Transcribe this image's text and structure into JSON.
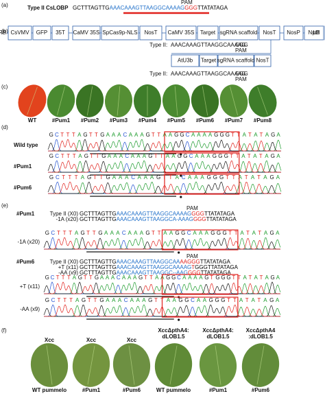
{
  "panel_a": {
    "label": "(a)",
    "pam": "PAM",
    "name": "Type II CsLOBP",
    "seq": [
      {
        "text": "GCTTTAGTTG",
        "color": "#000000"
      },
      {
        "text": "AAACAAAGTTAAGGCAAAAG",
        "color": "#1f6fc9"
      },
      {
        "text": "GGG",
        "color": "#e0201b"
      },
      {
        "text": "TTATATAGA",
        "color": "#000000"
      }
    ]
  },
  "panel_b": {
    "label": "(b)",
    "construct": [
      "RB",
      "CsVMV",
      "GFP",
      "35T",
      "CaMV 35S",
      "SpCas9p-NLS",
      "NosT",
      "CaMV 35S",
      "Target",
      "sgRNA scaffold",
      "NosT",
      "NosP",
      "NptII",
      "35T",
      "LB"
    ],
    "target1": {
      "name": "Type II:",
      "seq": "AAACAAAGTTAAGGCAAAAG",
      "pam_seq": "GGG",
      "pam": "PAM"
    },
    "cassette2": [
      "AtU3b",
      "Target",
      "sgRNA scaffold",
      "NosT"
    ],
    "target2": {
      "name": "Type II:",
      "seq": "AAACAAAGTTAAGGCAAAAG",
      "pam_seq": "GGG",
      "pam": "PAM"
    }
  },
  "panel_c": {
    "label": "(c)",
    "plants": [
      "WT",
      "#Pum1",
      "#Pum2",
      "#Pum3",
      "#Pum4",
      "#Pum5",
      "#Pum6",
      "#Pum7",
      "#Pum8"
    ]
  },
  "panel_d": {
    "label": "(d)",
    "traces": [
      {
        "name": "Wild type",
        "bases": "GCTTTAGTTGAAACAAAGTTAAGGCAAAAGGGTTATATAGA"
      },
      {
        "name": "#Pum1",
        "bases": "GCTTTAGTTGAAACAAAGTTAAGGCAAAGGGTTATATAGA"
      },
      {
        "name": "#Pum6",
        "bases": "GCTTTAGTTGAAACAAAGTTACAAAGGGTTATATAGA"
      }
    ]
  },
  "panel_e": {
    "label": "(e)",
    "groups": [
      {
        "line": "#Pum1",
        "pam": "PAM",
        "alleles": [
          {
            "name": "Type II (X0)",
            "seq": [
              {
                "text": "GCTTTAGTTG",
                "color": "#000000"
              },
              {
                "text": "AAACAAAGTTAAGGCAAAAG",
                "color": "#1f6fc9"
              },
              {
                "text": "GGG",
                "color": "#e0201b"
              },
              {
                "text": "TTATATAGA",
                "color": "#000000"
              }
            ]
          },
          {
            "name": "-1A (x20)",
            "seq": [
              {
                "text": "GCTTTAGTTG",
                "color": "#000000"
              },
              {
                "text": "AAACAAAGTTAAGGCA-AAAG",
                "color": "#1f6fc9"
              },
              {
                "text": "GGG",
                "color": "#e0201b"
              },
              {
                "text": "TTATATAGA",
                "color": "#000000"
              }
            ]
          }
        ],
        "traces": [
          {
            "name": "-1A (x20)",
            "bases": "GCTTTAGTTGAAACAAAGTTAAGGCAAAGGGTTATATAGA"
          }
        ]
      },
      {
        "line": "#Pum6",
        "pam": "PAM",
        "alleles": [
          {
            "name": "Type II (X0)",
            "seq": [
              {
                "text": "GCTTTAGTTG",
                "color": "#000000"
              },
              {
                "text": "AAACAAAGTTAAGGCAA",
                "color": "#1f6fc9"
              },
              {
                "text": "AAGGG",
                "color": "#e0201b"
              },
              {
                "text": "TTATATAGA",
                "color": "#000000"
              }
            ]
          },
          {
            "name": "+T (x11)",
            "seq": [
              {
                "text": "GCTTTAGTTG",
                "color": "#000000"
              },
              {
                "text": "AAACAAAGTTAAGGCAAAAG",
                "color": "#1f6fc9"
              },
              {
                "text": "T",
                "color": "#e0201b"
              },
              {
                "text": "GGGTTATATAGA",
                "color": "#000000"
              }
            ]
          },
          {
            "name": "-AA (x9)",
            "seq": [
              {
                "text": "GCTTTAGTTG",
                "color": "#000000"
              },
              {
                "text": "AAACAAAGTTAAGGC--AAG",
                "color": "#1f6fc9"
              },
              {
                "text": "GGG",
                "color": "#e0201b"
              },
              {
                "text": "TTATATAGA",
                "color": "#000000"
              }
            ]
          }
        ],
        "traces": [
          {
            "name": "+T (x11)",
            "bases": "GCTTTAGTTGAAACAAAGTTAAGGCAAAAGTGGGTTATATAGA"
          },
          {
            "name": "-AA (x9)",
            "bases": "GCTTTAGTTGAAACAAAGTTAAGGCAAGGGTTATATAGA"
          }
        ]
      }
    ]
  },
  "panel_f": {
    "label": "(f)",
    "leaves": [
      {
        "strain": "Xcc",
        "plant": "WT pummelo"
      },
      {
        "strain": "Xcc",
        "plant": "#Pum1"
      },
      {
        "strain": "Xcc",
        "plant": "#Pum6"
      },
      {
        "strain": "XccΔpthA4:\ndLOB1.5",
        "plant": "WT pummelo"
      },
      {
        "strain": "XccΔpthA4:\ndLOB1.5",
        "plant": "#Pum1"
      },
      {
        "strain": "XccΔpthA4\n:dLOB1.5",
        "plant": "#Pum6"
      }
    ]
  }
}
